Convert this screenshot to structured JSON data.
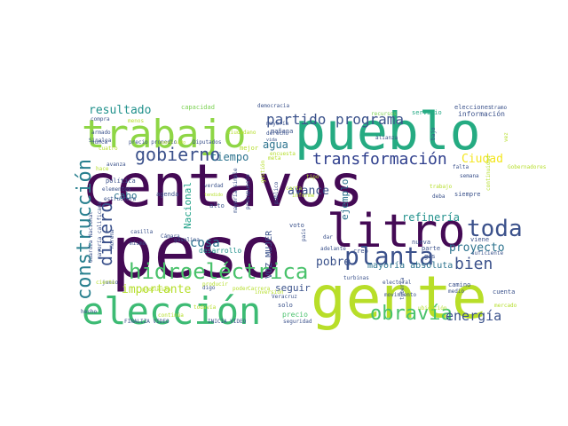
{
  "colors": {
    "background": "#ffffff"
  },
  "words": [
    {
      "text": "centavos",
      "color": "#440a55"
    },
    {
      "text": "peso",
      "color": "#440a55"
    },
    {
      "text": "gente",
      "color": "#b8de29"
    },
    {
      "text": "pueblo",
      "color": "#25ab82"
    },
    {
      "text": "trabajo",
      "color": "#8ed645"
    },
    {
      "text": "litro",
      "color": "#440a55"
    },
    {
      "text": "elección",
      "color": "#3dbb74"
    },
    {
      "text": "hidroeléctrica",
      "color": "#49c26b"
    },
    {
      "text": "construcción",
      "color": "#277f8e"
    },
    {
      "text": "transformación",
      "color": "#2f3f8d"
    },
    {
      "text": "gobierno",
      "color": "#3b518b"
    },
    {
      "text": "planta",
      "color": "#3b518b"
    },
    {
      "text": "toda",
      "color": "#3b518b"
    },
    {
      "text": "obravía",
      "color": "#49c26b"
    },
    {
      "text": "dinero",
      "color": "#3b518b"
    },
    {
      "text": "bien",
      "color": "#3b518b"
    },
    {
      "text": "partido",
      "color": "#3b528b"
    },
    {
      "text": "programa",
      "color": "#3b528b"
    },
    {
      "text": "resultado",
      "color": "#21918c"
    },
    {
      "text": "energía",
      "color": "#3b528b"
    },
    {
      "text": "proyecto",
      "color": "#2c738e"
    },
    {
      "text": "refinería",
      "color": "#21918c"
    },
    {
      "text": "avance",
      "color": "#3b528b"
    },
    {
      "text": "agua",
      "color": "#2c738e"
    },
    {
      "text": "importante",
      "color": "#b5de2b"
    },
    {
      "text": "Ciudad",
      "color": "#f4e61e"
    },
    {
      "text": "tiempo",
      "color": "#2c738e"
    },
    {
      "text": "cosa",
      "color": "#2c738e"
    },
    {
      "text": "pobre",
      "color": "#3b528b"
    },
    {
      "text": "ejemplo",
      "color": "#2c738e"
    },
    {
      "text": "mayoría absoluta",
      "color": "#2c738e"
    },
    {
      "text": "Nacional",
      "color": "#1fa187"
    },
    {
      "text": "seguir",
      "color": "#3b528b"
    },
    {
      "text": "VOZ MUJER",
      "color": "#3b528b"
    },
    {
      "text": "cabo",
      "color": "#2c738e"
    },
    {
      "text": "desarrollo",
      "color": "#21918c"
    },
    {
      "text": "precio",
      "color": "#4ac16d"
    },
    {
      "text": "capacidad",
      "color": "#7ad151"
    },
    {
      "text": "democracia",
      "color": "#3b528b"
    },
    {
      "text": "recursos",
      "color": "#7ad151"
    },
    {
      "text": "servicio",
      "color": "#22a884"
    },
    {
      "text": "elecciones",
      "color": "#3b528b"
    },
    {
      "text": "información",
      "color": "#3b528b"
    },
    {
      "text": "tramo",
      "color": "#3b528b"
    },
    {
      "text": "compra",
      "color": "#3b528b"
    },
    {
      "text": "menos",
      "color": "#b5de2b"
    },
    {
      "text": "armado",
      "color": "#3b528b"
    },
    {
      "text": "nunca",
      "color": "#3b528b"
    },
    {
      "text": "precio promedio",
      "color": "#3b528b"
    },
    {
      "text": "Diputados",
      "color": "#3b528b"
    },
    {
      "text": "nuevo lado",
      "color": "#b5de2b"
    },
    {
      "text": "Sinaloa",
      "color": "#3b528b"
    },
    {
      "text": "cuatro",
      "color": "#b5de2b"
    },
    {
      "text": "avanza",
      "color": "#3b528b"
    },
    {
      "text": "mayoría",
      "color": "#3b528b"
    },
    {
      "text": "derecho",
      "color": "#3b528b"
    },
    {
      "text": "vida",
      "color": "#3b528b"
    },
    {
      "text": "mañana",
      "color": "#3b528b"
    },
    {
      "text": "mejor",
      "color": "#b5de2b"
    },
    {
      "text": "alianza",
      "color": "#3b528b"
    },
    {
      "text": "bajo",
      "color": "#3b528b"
    },
    {
      "text": "falta",
      "color": "#3b528b"
    },
    {
      "text": "continuidad",
      "color": "#b5de2b"
    },
    {
      "text": "semana",
      "color": "#3b528b"
    },
    {
      "text": "política",
      "color": "#3b528b"
    },
    {
      "text": "elementos",
      "color": "#3b528b"
    },
    {
      "text": "estructura",
      "color": "#3b528b"
    },
    {
      "text": "agenda",
      "color": "#3b528b"
    },
    {
      "text": "verdad",
      "color": "#3b528b"
    },
    {
      "text": "tendido",
      "color": "#b5de2b"
    },
    {
      "text": "mayoría simple",
      "color": "#3b528b"
    },
    {
      "text": "presupuesto",
      "color": "#3b528b"
    },
    {
      "text": "público",
      "color": "#3b528b"
    },
    {
      "text": "siempre",
      "color": "#3b528b"
    },
    {
      "text": "alto",
      "color": "#3b528b"
    },
    {
      "text": "Cámara",
      "color": "#3b528b"
    },
    {
      "text": "gasolina",
      "color": "#3b528b"
    },
    {
      "text": "casilla",
      "color": "#3b528b"
    },
    {
      "text": "mismo",
      "color": "#3b528b"
    },
    {
      "text": "junio",
      "color": "#3b528b"
    },
    {
      "text": "Guardia Nacional",
      "color": "#3b528b"
    },
    {
      "text": "mayoría calificada",
      "color": "#3b528b"
    },
    {
      "text": "Morena",
      "color": "#3b528b"
    },
    {
      "text": "digo",
      "color": "#3b528b"
    },
    {
      "text": "turbinas",
      "color": "#3b528b"
    },
    {
      "text": "voto",
      "color": "#3b528b"
    },
    {
      "text": "país",
      "color": "#3b528b"
    },
    {
      "text": "nueva",
      "color": "#3b528b"
    },
    {
      "text": "parte",
      "color": "#3b528b"
    },
    {
      "text": "creo",
      "color": "#3b528b"
    },
    {
      "text": "gas",
      "color": "#3b528b"
    },
    {
      "text": "viene",
      "color": "#3b528b"
    },
    {
      "text": "suficiente",
      "color": "#3b528b"
    },
    {
      "text": "camino",
      "color": "#3b528b"
    },
    {
      "text": "medio",
      "color": "#3b528b"
    },
    {
      "text": "cuenta",
      "color": "#3b528b"
    },
    {
      "text": "movimiento",
      "color": "#3b528b"
    },
    {
      "text": "solo",
      "color": "#3b528b"
    },
    {
      "text": "Veracruz",
      "color": "#3b528b"
    },
    {
      "text": "electoral",
      "color": "#3b528b"
    },
    {
      "text": "seguridad",
      "color": "#3b528b"
    },
    {
      "text": "hecho",
      "color": "#3b528b"
    },
    {
      "text": "todavía",
      "color": "#b5de2b"
    },
    {
      "text": "poder",
      "color": "#b5de2b"
    },
    {
      "text": "FINALIZA VIDEO",
      "color": "#3b528b"
    },
    {
      "text": "INICIA VIDEO",
      "color": "#3b528b"
    },
    {
      "text": "dar",
      "color": "#3b528b"
    },
    {
      "text": "adelante",
      "color": "#3b528b"
    },
    {
      "text": "ubicación",
      "color": "#b5de2b"
    },
    {
      "text": "tubería",
      "color": "#3b528b"
    },
    {
      "text": "deba",
      "color": "#3b528b"
    },
    {
      "text": "producir",
      "color": "#b5de2b"
    },
    {
      "text": "encuesta",
      "color": "#b5de2b"
    },
    {
      "text": "carta",
      "color": "#b5de2b"
    },
    {
      "text": "informe",
      "color": "#b5de2b"
    },
    {
      "text": "gestión",
      "color": "#b5de2b"
    },
    {
      "text": "propuesta",
      "color": "#b5de2b"
    },
    {
      "text": "inversión",
      "color": "#b5de2b"
    },
    {
      "text": "ciudadano",
      "color": "#b5de2b"
    },
    {
      "text": "Gobernadores",
      "color": "#b5de2b"
    },
    {
      "text": "meta",
      "color": "#b5de2b"
    },
    {
      "text": "tipo",
      "color": "#b5de2b"
    },
    {
      "text": "hace",
      "color": "#b5de2b"
    },
    {
      "text": "cierto",
      "color": "#b5de2b"
    },
    {
      "text": "Carrera",
      "color": "#b5de2b"
    },
    {
      "text": "continúa",
      "color": "#b5de2b"
    },
    {
      "text": "trabajo",
      "color": "#b5de2b"
    },
    {
      "text": "mercado",
      "color": "#b5de2b"
    },
    {
      "text": "vez",
      "color": "#b5de2b"
    },
    {
      "text": "bien",
      "color": "#b5de2b"
    },
    {
      "text": "casi",
      "color": "#b5de2b"
    }
  ]
}
